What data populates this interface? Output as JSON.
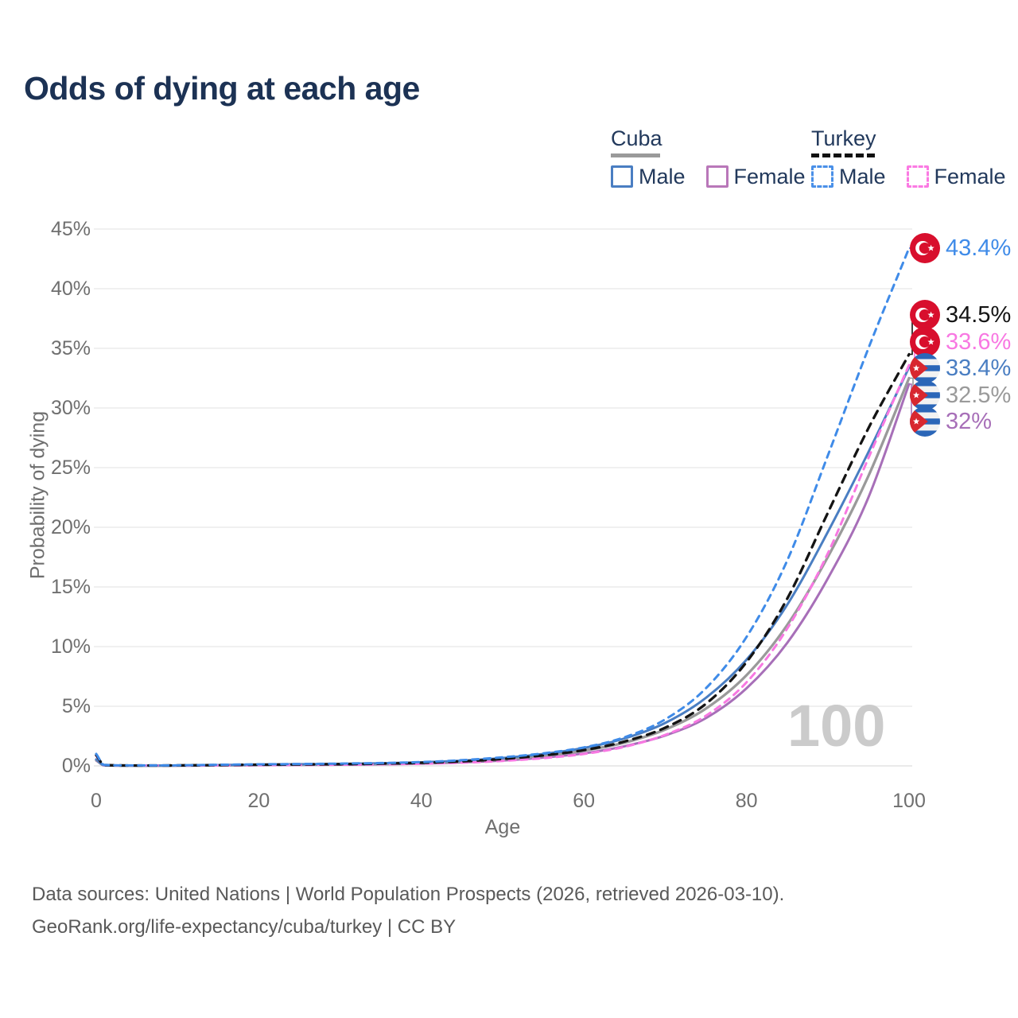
{
  "title": "Odds of dying at each age",
  "legend": {
    "groups": [
      {
        "label": "Cuba",
        "line_style": "solid",
        "underline_color": "#9a9a9a",
        "items": [
          {
            "label": "Male",
            "color": "#4a7ec2"
          },
          {
            "label": "Female",
            "color": "#b977b9"
          }
        ]
      },
      {
        "label": "Turkey",
        "line_style": "dashed",
        "underline_color": "#111111",
        "items": [
          {
            "label": "Male",
            "color": "#4a90e8"
          },
          {
            "label": "Female",
            "color": "#fb7ae3"
          }
        ]
      }
    ]
  },
  "watermark": "100",
  "source": {
    "line1": "Data sources: United Nations | World Population Prospects (2026, retrieved 2026-03-10).",
    "line2": "GeoRank.org/life-expectancy/cuba/turkey | CC BY"
  },
  "chart_data": {
    "type": "line",
    "title": "Odds of dying at each age",
    "xlabel": "Age",
    "ylabel": "Probability of dying",
    "xlim": [
      0,
      100
    ],
    "ylim": [
      0,
      45
    ],
    "x_tick_labels": [
      "0",
      "20",
      "40",
      "60",
      "80",
      "100"
    ],
    "x_tick_values": [
      0,
      20,
      40,
      60,
      80,
      100
    ],
    "y_tick_labels": [
      "0%",
      "5%",
      "10%",
      "15%",
      "20%",
      "25%",
      "30%",
      "35%",
      "40%",
      "45%"
    ],
    "y_tick_values": [
      0,
      5,
      10,
      15,
      20,
      25,
      30,
      35,
      40,
      45
    ],
    "grid": "horizontal",
    "legend_position": "top-right",
    "ages": [
      0,
      1,
      5,
      10,
      15,
      20,
      25,
      30,
      35,
      40,
      45,
      50,
      55,
      60,
      65,
      70,
      75,
      80,
      85,
      90,
      95,
      100
    ],
    "series": [
      {
        "name": "Turkey Male",
        "country": "turkey",
        "sex": "male",
        "color": "#3f8be8",
        "label_color": "#3f8be8",
        "dash": "8 7",
        "values": [
          1.0,
          0.08,
          0.04,
          0.05,
          0.09,
          0.13,
          0.16,
          0.19,
          0.24,
          0.32,
          0.48,
          0.72,
          1.05,
          1.55,
          2.4,
          3.9,
          6.5,
          10.8,
          17.2,
          26.0,
          35.0,
          43.4
        ],
        "end_label": "43.4%"
      },
      {
        "name": "Turkey Both sexes",
        "country": "turkey",
        "sex": "both",
        "color": "#141414",
        "label_color": "#141414",
        "dash": "10 8",
        "values": [
          0.9,
          0.07,
          0.035,
          0.04,
          0.07,
          0.1,
          0.12,
          0.15,
          0.19,
          0.26,
          0.38,
          0.58,
          0.88,
          1.32,
          2.05,
          3.2,
          5.2,
          8.7,
          14.0,
          21.2,
          28.3,
          34.5
        ],
        "end_label": "34.5%"
      },
      {
        "name": "Turkey Female",
        "country": "turkey",
        "sex": "female",
        "color": "#f878e2",
        "label_color": "#f878e2",
        "dash": "8 7",
        "values": [
          0.85,
          0.06,
          0.03,
          0.03,
          0.04,
          0.06,
          0.08,
          0.1,
          0.13,
          0.18,
          0.27,
          0.42,
          0.65,
          1.0,
          1.6,
          2.6,
          4.2,
          7.0,
          11.5,
          17.8,
          25.8,
          33.6
        ],
        "end_label": "33.6%"
      },
      {
        "name": "Cuba Male",
        "country": "cuba",
        "sex": "male",
        "color": "#4a7ec2",
        "label_color": "#4a7ec2",
        "dash": null,
        "values": [
          0.55,
          0.05,
          0.025,
          0.03,
          0.07,
          0.11,
          0.14,
          0.17,
          0.22,
          0.3,
          0.44,
          0.66,
          1.0,
          1.5,
          2.3,
          3.6,
          5.7,
          8.9,
          13.5,
          19.6,
          26.3,
          33.4
        ],
        "end_label": "33.4%"
      },
      {
        "name": "Cuba Both sexes",
        "country": "cuba",
        "sex": "both",
        "color": "#9a9a9a",
        "label_color": "#9a9a9a",
        "dash": null,
        "values": [
          0.5,
          0.04,
          0.02,
          0.025,
          0.05,
          0.08,
          0.1,
          0.13,
          0.17,
          0.24,
          0.36,
          0.55,
          0.84,
          1.28,
          1.95,
          3.05,
          4.8,
          7.6,
          11.8,
          17.5,
          24.3,
          32.5
        ],
        "end_label": "32.5%"
      },
      {
        "name": "Cuba Female",
        "country": "cuba",
        "sex": "female",
        "color": "#a76fb8",
        "label_color": "#a76fb8",
        "dash": null,
        "values": [
          0.45,
          0.04,
          0.02,
          0.02,
          0.04,
          0.06,
          0.08,
          0.1,
          0.13,
          0.19,
          0.29,
          0.45,
          0.7,
          1.05,
          1.65,
          2.55,
          4.0,
          6.5,
          10.3,
          15.7,
          22.5,
          32.0
        ],
        "end_label": "32%"
      }
    ]
  }
}
